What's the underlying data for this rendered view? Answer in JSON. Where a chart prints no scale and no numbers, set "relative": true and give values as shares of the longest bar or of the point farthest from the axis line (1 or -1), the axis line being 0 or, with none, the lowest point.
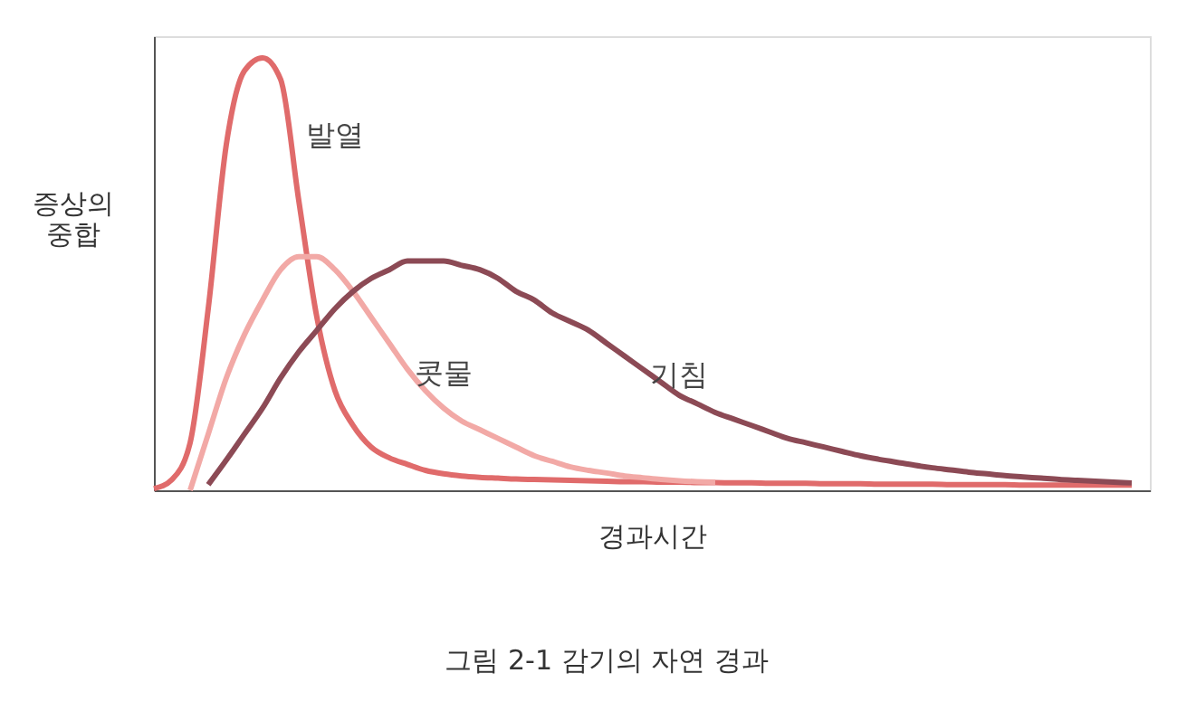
{
  "chart_data": {
    "type": "line",
    "relative": true,
    "ylabel": "증상의 중합",
    "xlabel": "경과시간",
    "annotations": [
      "그림 2-1 감기의 자연 경과"
    ],
    "categories": [
      null,
      null,
      null,
      null,
      null,
      null,
      null,
      null,
      null,
      null,
      null,
      null,
      null,
      null,
      null,
      null,
      null,
      null,
      null,
      null,
      null,
      null,
      null,
      null,
      null,
      null,
      null,
      null,
      null,
      null,
      null,
      null,
      null,
      null,
      null,
      null,
      null,
      null,
      null,
      null,
      null,
      null,
      null,
      null,
      null,
      null,
      null,
      null,
      null,
      null,
      null,
      null,
      null,
      null,
      null,
      null
    ],
    "series": [
      {
        "name": "발열",
        "color": "#e06b6b",
        "values": [
          0.004,
          0.025,
          0.11,
          0.42,
          0.8,
          0.97,
          1.0,
          0.95,
          0.67,
          0.4,
          0.23,
          0.15,
          0.1,
          0.075,
          0.06,
          0.046,
          0.038,
          0.033,
          0.03,
          0.028,
          0.026,
          0.025,
          0.024,
          0.023,
          0.022,
          0.021,
          0.02,
          0.02,
          0.019,
          0.019,
          0.018,
          0.018,
          0.017,
          0.017,
          0.016,
          0.016,
          0.016,
          0.015,
          0.015,
          0.015,
          0.014,
          0.014,
          0.014,
          0.014,
          0.013,
          0.013,
          0.013,
          0.013,
          0.012,
          0.012,
          0.012,
          0.012,
          0.012,
          0.012,
          0.012,
          null
        ]
      },
      {
        "name": "콧물",
        "color": "#f2a9a6",
        "values": [
          null,
          null,
          0.0,
          0.13,
          0.26,
          0.36,
          0.44,
          0.51,
          0.54,
          0.54,
          0.51,
          0.46,
          0.4,
          0.34,
          0.28,
          0.23,
          0.19,
          0.16,
          0.14,
          0.12,
          0.1,
          0.08,
          0.067,
          0.054,
          0.046,
          0.04,
          0.033,
          0.029,
          0.025,
          0.022,
          0.02,
          0.019,
          null,
          null,
          null,
          null,
          null,
          null,
          null,
          null,
          null,
          null,
          null,
          null,
          null,
          null,
          null,
          null,
          null,
          null,
          null,
          null,
          null,
          null,
          null,
          null
        ]
      },
      {
        "name": "기침",
        "color": "#8c4a55",
        "values": [
          null,
          null,
          null,
          0.013,
          0.07,
          0.13,
          0.19,
          0.26,
          0.32,
          0.37,
          0.42,
          0.46,
          0.49,
          0.51,
          0.53,
          0.53,
          0.53,
          0.52,
          0.51,
          0.49,
          0.46,
          0.44,
          0.41,
          0.39,
          0.37,
          0.34,
          0.31,
          0.28,
          0.25,
          0.22,
          0.2,
          0.18,
          0.165,
          0.15,
          0.135,
          0.12,
          0.11,
          0.1,
          0.09,
          0.08,
          0.072,
          0.065,
          0.058,
          0.052,
          0.047,
          0.042,
          0.038,
          0.034,
          0.031,
          0.028,
          0.025,
          0.023,
          0.021,
          0.019,
          0.017,
          null
        ]
      }
    ]
  }
}
